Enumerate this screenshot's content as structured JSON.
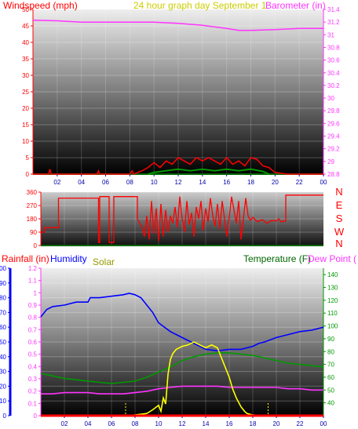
{
  "colors": {
    "red": "#ff0000",
    "magenta": "#ff33ff",
    "yellow": "#ffff00",
    "green": "#009900",
    "blue": "#0000ff",
    "olive": "#999900",
    "darkgreen": "#006600",
    "gold": "#cccc00"
  },
  "chart_data": [
    {
      "type": "line",
      "id": "wind-baro",
      "title": "24 hour graph day September 1",
      "ylabel": "Windspeed (mph)",
      "ylabel_right": "Barometer (in)",
      "ylim": [
        0,
        50
      ],
      "ylim_right": [
        28.8,
        31.4
      ],
      "yticks": [
        "0",
        "5",
        "10",
        "15",
        "20",
        "25",
        "30",
        "35",
        "40",
        "45",
        "50"
      ],
      "yticks_right": [
        "28.8",
        "29",
        "29.2",
        "29.4",
        "29.6",
        "29.8",
        "30",
        "30.2",
        "30.4",
        "30.6",
        "30.8",
        "31",
        "31.2",
        "31.4"
      ],
      "xticks": [
        "02",
        "04",
        "06",
        "08",
        "10",
        "12",
        "14",
        "16",
        "18",
        "20",
        "22",
        "00"
      ],
      "xlim": [
        0,
        24
      ],
      "series": [
        {
          "key": "barometer",
          "axis": "right",
          "color": "#ff33ff",
          "x": [
            0,
            2,
            4,
            6,
            8,
            10,
            12,
            14,
            16,
            17,
            18,
            20,
            22,
            24
          ],
          "y": [
            31.23,
            31.22,
            31.2,
            31.2,
            31.2,
            31.2,
            31.18,
            31.15,
            31.1,
            31.07,
            31.07,
            31.08,
            31.1,
            31.1
          ]
        },
        {
          "key": "windgust",
          "axis": "left",
          "color": "#ff0000",
          "x": [
            0,
            1.3,
            1.4,
            1.5,
            5.3,
            5.4,
            5.5,
            8,
            8.2,
            8.3,
            9,
            9.5,
            10,
            10.5,
            11,
            11.5,
            12,
            12.5,
            13,
            13.5,
            14,
            14.5,
            15,
            15.5,
            16,
            16.5,
            17,
            17.5,
            18,
            18.5,
            19,
            19.5,
            20,
            21,
            24
          ],
          "y": [
            0,
            0,
            1.5,
            0,
            0,
            1,
            0,
            0,
            1,
            0,
            1,
            2,
            3.5,
            2,
            4,
            3,
            5,
            4,
            3,
            5,
            4,
            5,
            4,
            3,
            5,
            3,
            4,
            2.5,
            5,
            4.5,
            2.5,
            2,
            0.5,
            0,
            0
          ]
        },
        {
          "key": "windspeed",
          "axis": "left",
          "color": "#009900",
          "x": [
            9.5,
            10,
            11,
            12,
            13,
            14,
            15,
            16,
            17,
            18,
            19,
            19.5
          ],
          "y": [
            0,
            0.5,
            1,
            1.5,
            1,
            1.5,
            1,
            1.5,
            1,
            1.5,
            0.8,
            0
          ]
        }
      ]
    },
    {
      "type": "line",
      "id": "wind-direction",
      "ylim": [
        0,
        360
      ],
      "yticks": [
        "0",
        "90",
        "180",
        "270",
        "360"
      ],
      "direction_labels": [
        "N",
        "W",
        "S",
        "E",
        "N"
      ],
      "xlim": [
        0,
        24
      ],
      "series": [
        {
          "key": "direction",
          "color": "#ff0000",
          "x": [
            0,
            0.3,
            0.3,
            1.5,
            1.5,
            4.9,
            4.9,
            5.0,
            5.0,
            5.8,
            5.8,
            6.2,
            6.2,
            8.2,
            8.2,
            8.6,
            8.8,
            9.0,
            9.2,
            9.4,
            9.6,
            9.8,
            10.0,
            10.2,
            10.4,
            10.6,
            10.8,
            11.0,
            11.2,
            11.4,
            11.6,
            11.8,
            12.0,
            12.2,
            12.4,
            12.6,
            12.8,
            13.0,
            13.2,
            13.4,
            13.6,
            13.8,
            14.0,
            14.2,
            14.4,
            14.6,
            14.8,
            15.0,
            15.2,
            15.4,
            15.6,
            15.8,
            16.0,
            16.2,
            16.4,
            16.6,
            16.8,
            17.0,
            17.2,
            17.4,
            17.6,
            17.8,
            18.0,
            18.4,
            18.8,
            19.2,
            19.6,
            20.0,
            20.2,
            20.4,
            20.8,
            20.8,
            24
          ],
          "y": [
            90,
            90,
            120,
            120,
            320,
            320,
            20,
            20,
            330,
            330,
            20,
            20,
            330,
            330,
            180,
            120,
            60,
            200,
            40,
            300,
            80,
            250,
            30,
            280,
            60,
            240,
            90,
            200,
            150,
            260,
            120,
            330,
            180,
            90,
            300,
            140,
            220,
            60,
            260,
            180,
            300,
            100,
            250,
            160,
            320,
            200,
            130,
            280,
            110,
            300,
            180,
            60,
            190,
            330,
            240,
            150,
            300,
            40,
            180,
            320,
            200,
            170,
            190,
            160,
            175,
            150,
            170,
            165,
            180,
            160,
            165,
            340,
            340
          ]
        }
      ]
    },
    {
      "type": "line",
      "id": "temp-humidity",
      "ylabel": "Rainfall (in)",
      "ylabel2": "Humidity",
      "ylabel3": "Solar",
      "ylabel_right": "Temperature (F)",
      "ylabel_right2": "Dew Point (",
      "ylim_humidity": [
        0,
        100
      ],
      "ylim_rain": [
        0,
        1.2
      ],
      "ylim_temp": [
        30,
        145
      ],
      "yticks_humidity": [
        "0",
        "10",
        "20",
        "30",
        "40",
        "50",
        "60",
        "70",
        "80",
        "90",
        "100"
      ],
      "yticks_rain": [
        "0",
        "0.1",
        "0.2",
        "0.3",
        "0.4",
        "0.5",
        "0.6",
        "0.7",
        "0.8",
        "0.9",
        "1",
        "1.1",
        "1.2"
      ],
      "yticks_temp": [
        "40",
        "50",
        "60",
        "70",
        "80",
        "90",
        "100",
        "110",
        "120",
        "130",
        "140"
      ],
      "xticks": [
        "02",
        "04",
        "06",
        "08",
        "10",
        "12",
        "14",
        "16",
        "18",
        "20",
        "22",
        "00"
      ],
      "xlim": [
        0,
        24
      ],
      "series": [
        {
          "key": "humidity",
          "color": "#0000ff",
          "axis": "humidity",
          "x": [
            0,
            0.5,
            1,
            2,
            3,
            4,
            4.2,
            5,
            6,
            7,
            7.5,
            8,
            8.5,
            9,
            9.5,
            10,
            11,
            12,
            13,
            14,
            15,
            16,
            17,
            18,
            18.5,
            19,
            20,
            21,
            22,
            23,
            24
          ],
          "y": [
            67,
            72,
            74,
            75,
            77,
            77,
            80,
            80,
            81,
            82,
            83,
            82,
            80,
            75,
            70,
            63,
            57,
            53,
            49,
            45,
            44,
            45,
            45,
            47,
            49,
            50,
            53,
            55,
            57,
            58,
            60
          ]
        },
        {
          "key": "temperature",
          "color": "#009900",
          "axis": "temp",
          "x": [
            0,
            1,
            2,
            3,
            4,
            5,
            6,
            7,
            8,
            9,
            10,
            11,
            12,
            13,
            14,
            15,
            16,
            17,
            18,
            19,
            20,
            21,
            22,
            23,
            24
          ],
          "y": [
            63,
            61,
            59,
            58,
            57,
            56,
            55,
            56,
            57,
            60,
            64,
            68,
            73,
            76,
            78,
            79,
            79,
            78,
            77,
            75,
            73,
            71,
            70,
            69,
            68
          ]
        },
        {
          "key": "dewpoint",
          "color": "#ff33ff",
          "axis": "temp",
          "x": [
            0,
            1,
            2,
            3,
            4,
            5,
            6,
            7,
            8,
            9,
            10,
            11,
            12,
            13,
            14,
            15,
            16,
            17,
            18,
            19,
            20,
            21,
            22,
            23,
            24
          ],
          "y": [
            47,
            47,
            48,
            48,
            48,
            47,
            47,
            47,
            48,
            49,
            51,
            52,
            53,
            53,
            53,
            53,
            52,
            52,
            52,
            52,
            52,
            51,
            51,
            50,
            50
          ]
        },
        {
          "key": "solar",
          "color": "#ffff00",
          "axis": "humidity",
          "x": [
            0,
            7.2,
            8,
            9,
            9.5,
            10,
            10.2,
            10.4,
            10.6,
            10.8,
            11,
            11.2,
            11.5,
            12,
            12.5,
            13,
            13.5,
            14,
            14.5,
            15,
            15.3,
            15.6,
            16,
            16.3,
            16.6,
            17,
            17.3,
            17.5,
            18,
            19,
            24
          ],
          "y": [
            0,
            0,
            0.5,
            1.5,
            4,
            7,
            3,
            12,
            8,
            28,
            38,
            42,
            45,
            47,
            48,
            50,
            48,
            46,
            48,
            46,
            40,
            34,
            26,
            18,
            12,
            6,
            3,
            1.5,
            0.5,
            0,
            0
          ]
        },
        {
          "key": "rainfall",
          "color": "#ff0000",
          "axis": "rain",
          "x": [
            0,
            24
          ],
          "y": [
            0,
            0
          ]
        }
      ]
    }
  ]
}
